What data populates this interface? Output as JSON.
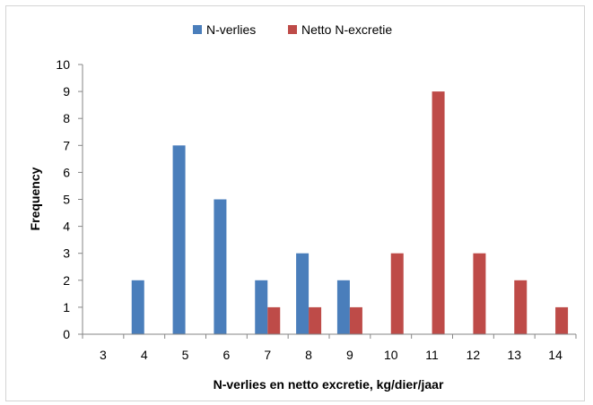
{
  "chart_data": {
    "type": "bar",
    "categories": [
      "3",
      "4",
      "5",
      "6",
      "7",
      "8",
      "9",
      "10",
      "11",
      "12",
      "13",
      "14"
    ],
    "series": [
      {
        "name": "N-verlies",
        "color": "#4a7ebb",
        "values": [
          0,
          2,
          7,
          5,
          2,
          3,
          2,
          0,
          0,
          0,
          0,
          0
        ]
      },
      {
        "name": "Netto N-excretie",
        "color": "#be4b48",
        "values": [
          0,
          0,
          0,
          0,
          1,
          1,
          1,
          3,
          9,
          3,
          2,
          1
        ]
      }
    ],
    "xlabel": "N-verlies en netto excretie, kg/dier/jaar",
    "ylabel": "Frequency",
    "ylim": [
      0,
      10
    ],
    "yticks": [
      "0",
      "1",
      "2",
      "3",
      "4",
      "5",
      "6",
      "7",
      "8",
      "9",
      "10"
    ],
    "grid": false,
    "legend_position": "top"
  }
}
